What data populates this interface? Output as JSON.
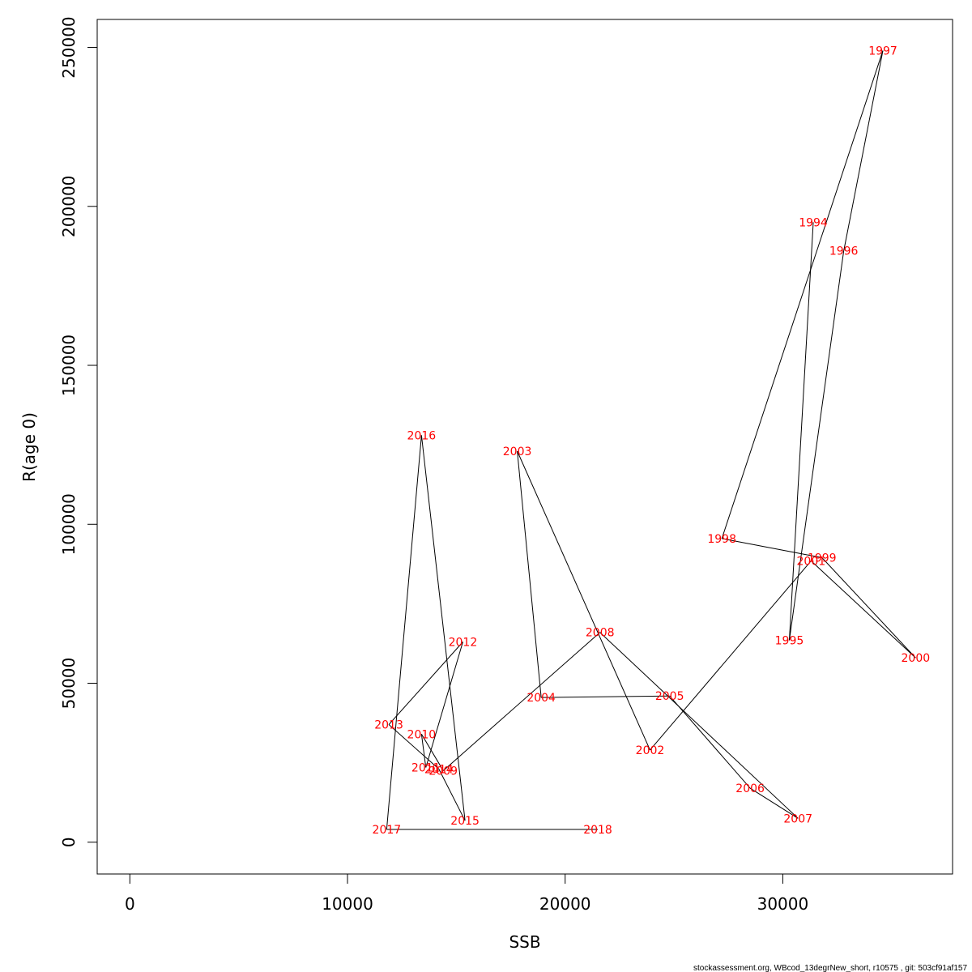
{
  "chart_data": {
    "type": "line",
    "xlabel": "SSB",
    "ylabel": "R(age 0)",
    "xlim": [
      -1500,
      37800
    ],
    "ylim": [
      -10000,
      258800
    ],
    "xticks": [
      0,
      10000,
      20000,
      30000
    ],
    "xtick_labels": [
      "0",
      "10000",
      "20000",
      "30000"
    ],
    "yticks": [
      0,
      50000,
      100000,
      150000,
      200000,
      250000
    ],
    "ytick_labels": [
      "0",
      "50000",
      "100000",
      "150000",
      "200000",
      "250000"
    ],
    "grid": false,
    "line_color": "#000000",
    "label_color": "#ff0000",
    "points": [
      {
        "year": "1994",
        "ssb": 31400,
        "r": 195000
      },
      {
        "year": "1995",
        "ssb": 30300,
        "r": 63500
      },
      {
        "year": "1996",
        "ssb": 32800,
        "r": 186000
      },
      {
        "year": "1997",
        "ssb": 34600,
        "r": 249000
      },
      {
        "year": "1998",
        "ssb": 27200,
        "r": 95500
      },
      {
        "year": "1999",
        "ssb": 31800,
        "r": 89500
      },
      {
        "year": "2000",
        "ssb": 36100,
        "r": 58000
      },
      {
        "year": "2001",
        "ssb": 31300,
        "r": 88500
      },
      {
        "year": "2002",
        "ssb": 23900,
        "r": 29000
      },
      {
        "year": "2003",
        "ssb": 17800,
        "r": 123000
      },
      {
        "year": "2004",
        "ssb": 18900,
        "r": 45500
      },
      {
        "year": "2005",
        "ssb": 24800,
        "r": 46000
      },
      {
        "year": "2006",
        "ssb": 28500,
        "r": 17000
      },
      {
        "year": "2007",
        "ssb": 30700,
        "r": 7500
      },
      {
        "year": "2008",
        "ssb": 21600,
        "r": 66000
      },
      {
        "year": "2009",
        "ssb": 14400,
        "r": 22500
      },
      {
        "year": "2010",
        "ssb": 13400,
        "r": 34000
      },
      {
        "year": "2011",
        "ssb": 13600,
        "r": 23500
      },
      {
        "year": "2012",
        "ssb": 15300,
        "r": 63000
      },
      {
        "year": "2013",
        "ssb": 11900,
        "r": 37000
      },
      {
        "year": "2014",
        "ssb": 14200,
        "r": 23000
      },
      {
        "year": "2015",
        "ssb": 15400,
        "r": 6800
      },
      {
        "year": "2016",
        "ssb": 13400,
        "r": 128000
      },
      {
        "year": "2017",
        "ssb": 11800,
        "r": 4000
      },
      {
        "year": "2018",
        "ssb": 21500,
        "r": 4000
      }
    ]
  },
  "footer": "stockassessment.org, WBcod_13degrNew_short, r10575 , git: 503cf91af157"
}
